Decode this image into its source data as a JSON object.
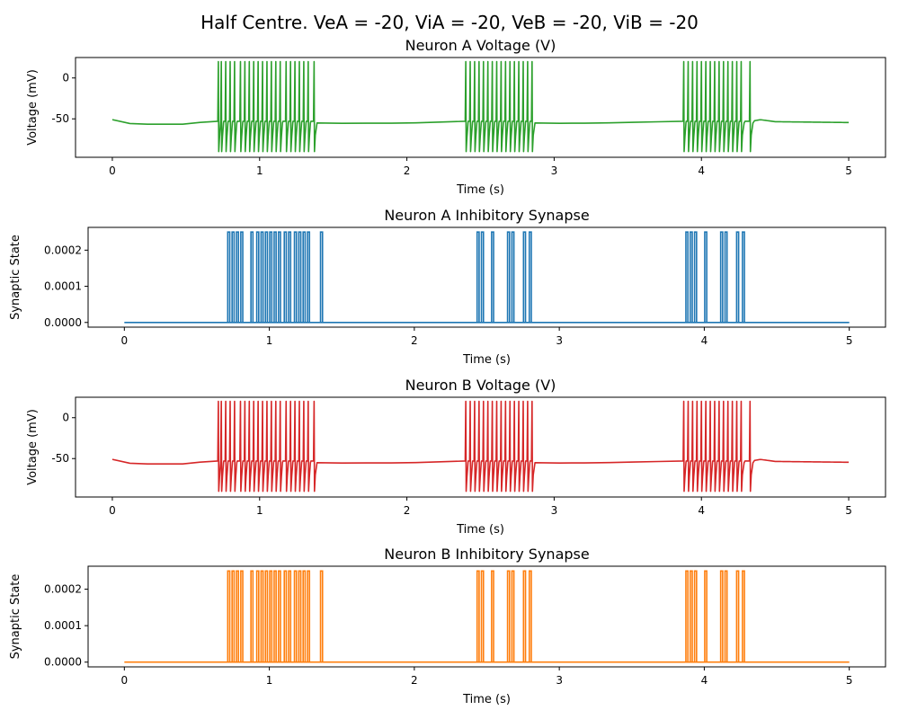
{
  "figure": {
    "title": "Half Centre. VeA = -20, ViA = -20, VeB = -20, ViB = -20"
  },
  "chart_data": [
    {
      "type": "line",
      "title": "Neuron A Voltage (V)",
      "xlabel": "Time (s)",
      "ylabel": "Voltage (mV)",
      "xlim": [
        -0.25,
        5.25
      ],
      "ylim": [
        -97,
        25
      ],
      "xticks": [
        "0",
        "1",
        "2",
        "3",
        "4",
        "5"
      ],
      "yticks": [
        "0",
        "-50"
      ],
      "color": "#2ca02c",
      "kind": "voltage",
      "baseline": [
        [
          0,
          -51
        ],
        [
          0.05,
          -55
        ],
        [
          0.2,
          -56.5
        ],
        [
          0.48,
          -56.5
        ],
        [
          0.5,
          -55.5
        ],
        [
          0.71,
          -53
        ],
        [
          1.38,
          -53
        ],
        [
          1.45,
          -55.5
        ],
        [
          2.0,
          -55.2
        ],
        [
          2.38,
          -53
        ],
        [
          2.86,
          -53
        ],
        [
          2.92,
          -55.5
        ],
        [
          3.3,
          -55.2
        ],
        [
          3.86,
          -53
        ],
        [
          4.34,
          -53
        ],
        [
          4.4,
          -51
        ],
        [
          4.5,
          -53.5
        ],
        [
          5.0,
          -54.5
        ]
      ],
      "spike_peak": 20,
      "spike_trough": -90,
      "trough_recovery": -55,
      "spikes": [
        0.72,
        0.74,
        0.77,
        0.8,
        0.83,
        0.87,
        0.9,
        0.93,
        0.96,
        0.99,
        1.02,
        1.05,
        1.08,
        1.11,
        1.14,
        1.18,
        1.21,
        1.24,
        1.27,
        1.3,
        1.33,
        1.37,
        2.4,
        2.43,
        2.46,
        2.49,
        2.52,
        2.55,
        2.58,
        2.61,
        2.64,
        2.67,
        2.7,
        2.73,
        2.76,
        2.79,
        2.82,
        2.85,
        3.88,
        3.91,
        3.94,
        3.97,
        4.0,
        4.03,
        4.06,
        4.09,
        4.12,
        4.15,
        4.18,
        4.21,
        4.24,
        4.27,
        4.33
      ]
    },
    {
      "type": "line",
      "title": "Neuron A Inhibitory Synapse",
      "xlabel": "Time (s)",
      "ylabel": "Synaptic State",
      "xlim": [
        -0.25,
        5.25
      ],
      "ylim": [
        -1.3e-05,
        0.000263
      ],
      "xticks": [
        "0",
        "1",
        "2",
        "3",
        "4",
        "5"
      ],
      "yticks": [
        "0.0000",
        "0.0001",
        "0.0002"
      ],
      "color": "#1f77b4",
      "kind": "synapse",
      "pulse_value": 0.00025,
      "x_end": 5.0,
      "spikes": [
        0.72,
        0.75,
        0.78,
        0.81,
        0.88,
        0.92,
        0.95,
        0.98,
        1.01,
        1.04,
        1.07,
        1.11,
        1.14,
        1.18,
        1.21,
        1.24,
        1.27,
        1.36,
        2.44,
        2.47,
        2.54,
        2.65,
        2.68,
        2.76,
        2.8,
        3.88,
        3.91,
        3.94,
        4.01,
        4.12,
        4.15,
        4.23,
        4.27
      ]
    },
    {
      "type": "line",
      "title": "Neuron B Voltage (V)",
      "xlabel": "Time (s)",
      "ylabel": "Voltage (mV)",
      "xlim": [
        -0.25,
        5.25
      ],
      "ylim": [
        -97,
        25
      ],
      "xticks": [
        "0",
        "1",
        "2",
        "3",
        "4",
        "5"
      ],
      "yticks": [
        "0",
        "-50"
      ],
      "color": "#d62728",
      "kind": "voltage",
      "baseline": [
        [
          0,
          -51
        ],
        [
          0.05,
          -55
        ],
        [
          0.2,
          -56.5
        ],
        [
          0.48,
          -56.5
        ],
        [
          0.5,
          -55.5
        ],
        [
          0.71,
          -53
        ],
        [
          1.38,
          -53
        ],
        [
          1.45,
          -55.5
        ],
        [
          2.0,
          -55.2
        ],
        [
          2.38,
          -53
        ],
        [
          2.86,
          -53
        ],
        [
          2.92,
          -55.5
        ],
        [
          3.3,
          -55.2
        ],
        [
          3.86,
          -53
        ],
        [
          4.34,
          -53
        ],
        [
          4.4,
          -51
        ],
        [
          4.5,
          -53.5
        ],
        [
          5.0,
          -54.5
        ]
      ],
      "spike_peak": 20,
      "spike_trough": -90,
      "trough_recovery": -55,
      "spikes": [
        0.72,
        0.74,
        0.77,
        0.8,
        0.83,
        0.87,
        0.9,
        0.93,
        0.96,
        0.99,
        1.02,
        1.05,
        1.08,
        1.11,
        1.14,
        1.18,
        1.21,
        1.24,
        1.27,
        1.3,
        1.33,
        1.37,
        2.4,
        2.43,
        2.46,
        2.49,
        2.52,
        2.55,
        2.58,
        2.61,
        2.64,
        2.67,
        2.7,
        2.73,
        2.76,
        2.79,
        2.82,
        2.85,
        3.88,
        3.91,
        3.94,
        3.97,
        4.0,
        4.03,
        4.06,
        4.09,
        4.12,
        4.15,
        4.18,
        4.21,
        4.24,
        4.27,
        4.33
      ]
    },
    {
      "type": "line",
      "title": "Neuron B Inhibitory Synapse",
      "xlabel": "Time (s)",
      "ylabel": "Synaptic State",
      "xlim": [
        -0.25,
        5.25
      ],
      "ylim": [
        -1.3e-05,
        0.000263
      ],
      "xticks": [
        "0",
        "1",
        "2",
        "3",
        "4",
        "5"
      ],
      "yticks": [
        "0.0000",
        "0.0001",
        "0.0002"
      ],
      "color": "#ff7f0e",
      "kind": "synapse",
      "pulse_value": 0.00025,
      "x_end": 5.0,
      "spikes": [
        0.72,
        0.75,
        0.78,
        0.81,
        0.88,
        0.92,
        0.95,
        0.98,
        1.01,
        1.04,
        1.07,
        1.11,
        1.14,
        1.18,
        1.21,
        1.24,
        1.27,
        1.36,
        2.44,
        2.47,
        2.54,
        2.65,
        2.68,
        2.76,
        2.8,
        3.88,
        3.91,
        3.94,
        4.01,
        4.12,
        4.15,
        4.23,
        4.27
      ]
    }
  ]
}
